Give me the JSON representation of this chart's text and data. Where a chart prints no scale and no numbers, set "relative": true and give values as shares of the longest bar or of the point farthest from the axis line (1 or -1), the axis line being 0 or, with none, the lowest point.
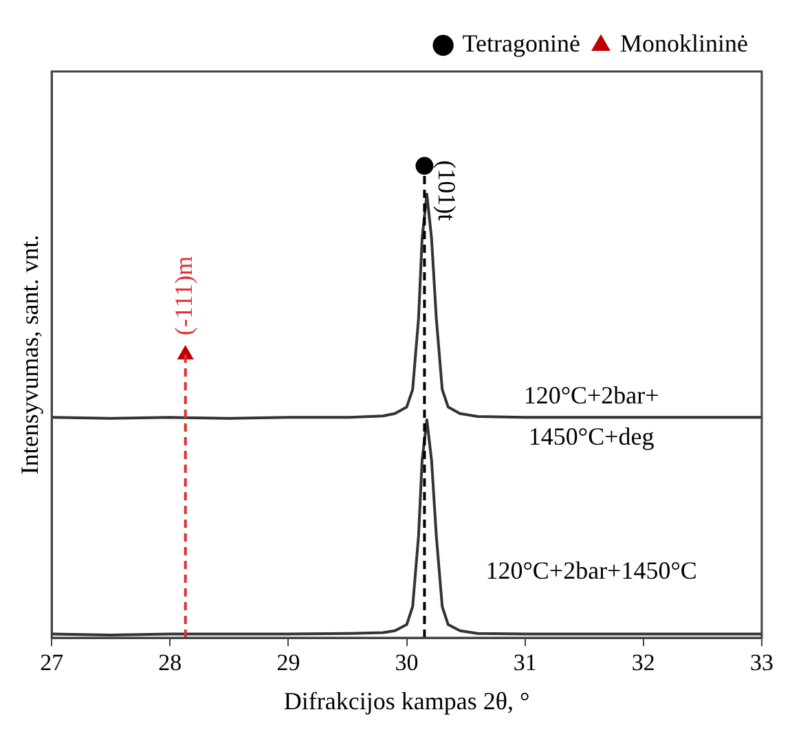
{
  "chart_data": {
    "type": "line",
    "relative": true,
    "xlabel": "Difrakcijos kampas 2θ, °",
    "ylabel": "Intensyvumas, sant. vnt.",
    "xlim": [
      27,
      33
    ],
    "xticks": [
      27,
      28,
      29,
      30,
      31,
      32,
      33
    ],
    "grid": false,
    "legend": "top right",
    "line_style": "solid",
    "series": [
      {
        "name": "120°C+2bar+\n1450°C+deg",
        "color": "#333333",
        "marker": "none",
        "x": [
          27,
          27.5,
          28,
          28.5,
          29,
          29.5,
          29.8,
          29.9,
          30.0,
          30.05,
          30.1,
          30.13,
          30.17,
          30.21,
          30.25,
          30.3,
          30.35,
          30.45,
          30.6,
          31,
          31.5,
          32,
          32.5,
          33
        ],
        "values": [
          0.467,
          0.465,
          0.467,
          0.465,
          0.467,
          0.467,
          0.47,
          0.475,
          0.489,
          0.526,
          0.677,
          0.846,
          0.94,
          0.846,
          0.677,
          0.526,
          0.489,
          0.475,
          0.469,
          0.467,
          0.467,
          0.467,
          0.467,
          0.467
        ]
      },
      {
        "name": "120°C+2bar+1450°C",
        "color": "#333333",
        "marker": "none",
        "x": [
          27,
          27.5,
          28,
          28.5,
          29,
          29.5,
          29.8,
          29.9,
          30.0,
          30.05,
          30.1,
          30.13,
          30.17,
          30.21,
          30.25,
          30.3,
          30.35,
          30.45,
          30.6,
          31,
          31.5,
          32,
          32.5,
          33
        ],
        "values": [
          0.008,
          0.006,
          0.008,
          0.008,
          0.008,
          0.009,
          0.011,
          0.015,
          0.028,
          0.066,
          0.216,
          0.376,
          0.462,
          0.376,
          0.216,
          0.066,
          0.028,
          0.015,
          0.009,
          0.008,
          0.008,
          0.008,
          0.008,
          0.008
        ]
      },
      {
        "type": "scatter",
        "name": "Tetragoninė",
        "color": "#000000",
        "marker": "circle",
        "x": [
          30.15
        ],
        "values": [
          1
        ]
      },
      {
        "type": "scatter",
        "name": "Monoklininė",
        "color": "#c00000",
        "marker": "triangle",
        "x": [
          28.13
        ],
        "values": [
          0.6
        ]
      }
    ],
    "ref_lines": [
      {
        "axis": "x",
        "value": 30.15,
        "label": "(101)t",
        "color": "#000000",
        "line_style": "dashed"
      },
      {
        "axis": "x",
        "value": 28.13,
        "label": "(-111)m",
        "color": "#e03030",
        "line_style": "dashed"
      }
    ]
  }
}
